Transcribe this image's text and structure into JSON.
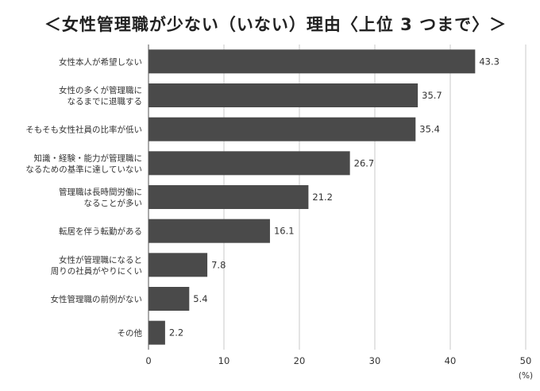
{
  "chart_data": {
    "type": "bar",
    "orientation": "horizontal",
    "title": "＜女性管理職が少ない（いない）理由〈上位 3 つまで〉＞",
    "categories": [
      [
        "女性本人が希望しない"
      ],
      [
        "女性の多くが管理職に",
        "なるまでに退職する"
      ],
      [
        "そもそも女性社員の比率が低い"
      ],
      [
        "知識・経験・能力が管理職に",
        "なるための基準に達していない"
      ],
      [
        "管理職は長時間労働に",
        "なることが多い"
      ],
      [
        "転居を伴う転勤がある"
      ],
      [
        "女性が管理職になると",
        "周りの社員がやりにくい"
      ],
      [
        "女性管理職の前例がない"
      ],
      [
        "その他"
      ]
    ],
    "values": [
      43.3,
      35.7,
      35.4,
      26.7,
      21.2,
      16.1,
      7.8,
      5.4,
      2.2
    ],
    "value_labels": [
      "43.3",
      "35.7",
      "35.4",
      "26.7",
      "21.2",
      "16.1",
      "7.8",
      "5.4",
      "2.2"
    ],
    "xlim": [
      0,
      50
    ],
    "xticks": [
      0,
      10,
      20,
      30,
      40,
      50
    ],
    "xunit": "(%)",
    "grid": true,
    "bar_color": "#4a4a4a"
  }
}
